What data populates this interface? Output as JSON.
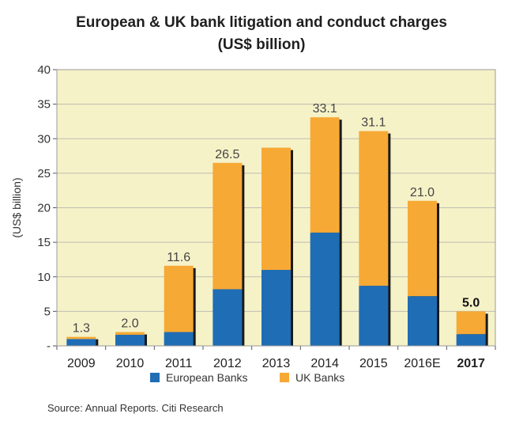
{
  "chart_data": {
    "type": "bar",
    "stacked": true,
    "title_line1": "European & UK bank litigation and conduct charges",
    "title_line2": "(US$ billion)",
    "ylabel": "(US$ billion)",
    "xlabel": "",
    "ylim": [
      0,
      40
    ],
    "yticks": [
      "-",
      "5",
      "10",
      "15",
      "20",
      "25",
      "30",
      "35",
      "40"
    ],
    "categories": [
      "2009",
      "2010",
      "2011",
      "2012",
      "2013",
      "2014",
      "2015",
      "2016E",
      "2017"
    ],
    "bold_categories": [
      "2017"
    ],
    "series": [
      {
        "name": "European Banks",
        "color": "#1f6db5",
        "values": [
          1.0,
          1.6,
          2.0,
          8.2,
          11.0,
          16.4,
          8.7,
          7.2,
          1.7
        ]
      },
      {
        "name": "UK Banks",
        "color": "#f7a935",
        "values": [
          0.3,
          0.4,
          9.6,
          18.3,
          17.7,
          16.7,
          22.4,
          13.8,
          3.3
        ]
      }
    ],
    "totals": [
      1.3,
      2.0,
      11.6,
      26.5,
      null,
      33.1,
      31.1,
      21.0,
      5.0
    ],
    "total_labels": [
      "1.3",
      "2.0",
      "11.6",
      "26.5",
      "",
      "33.1",
      "31.1",
      "21.0",
      "5.0"
    ],
    "bold_total_labels": [
      "5.0"
    ],
    "grid": true,
    "legend_position": "bottom",
    "plot_background": "#f6f2c8",
    "grid_color": "#bdbdb0"
  },
  "source": "Source: Annual Reports. Citi Research"
}
